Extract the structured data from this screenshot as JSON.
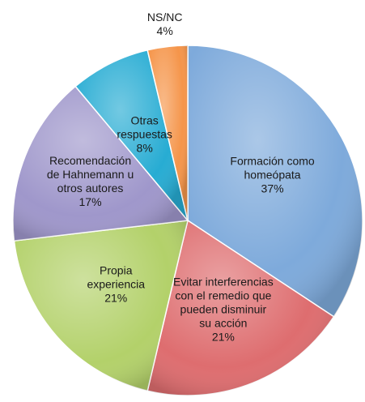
{
  "chart_data": {
    "type": "pie",
    "categories": [
      "Formación como\nhomeópata",
      "Evitar interferencias\ncon el remedio que\npueden disminuir\nsu acción",
      "Propia\nexperiencia",
      "Recomendación\nde Hahnemann u\notros autores",
      "Otras\nrespuestas",
      "NS/NC"
    ],
    "values": [
      37,
      21,
      21,
      17,
      8,
      4
    ],
    "value_labels": [
      "37%",
      "21%",
      "21%",
      "17%",
      "8%",
      "4%"
    ],
    "colors": [
      "#7eaadb",
      "#de6d6f",
      "#b3d16a",
      "#9f97cb",
      "#27acd3",
      "#f5954a"
    ]
  }
}
